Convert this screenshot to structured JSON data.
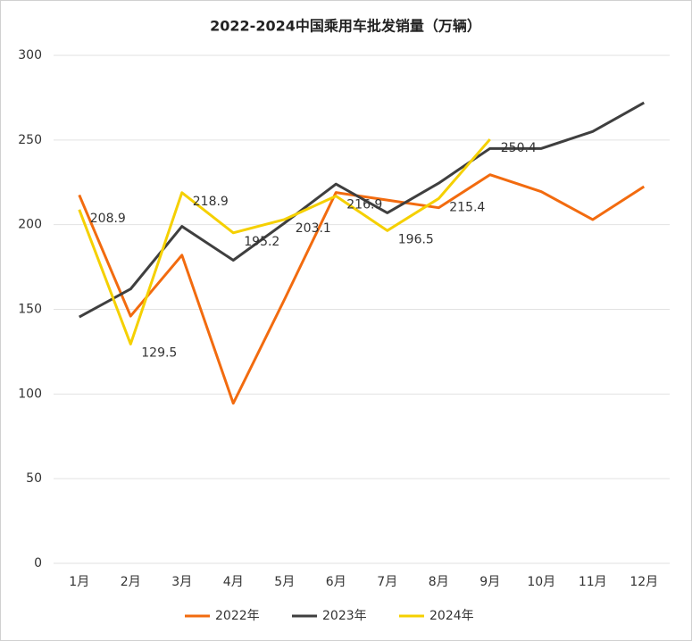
{
  "chart_data": {
    "type": "line",
    "title": "2022-2024中国乘用车批发销量（万辆）",
    "categories": [
      "1月",
      "2月",
      "3月",
      "4月",
      "5月",
      "6月",
      "7月",
      "8月",
      "9月",
      "10月",
      "11月",
      "12月"
    ],
    "series": [
      {
        "name": "2022年",
        "color": "#f26b0f",
        "values": [
          217.5,
          146,
          182,
          94.5,
          156,
          219,
          214.5,
          210,
          229.5,
          219.5,
          203,
          222.5
        ],
        "show_labels": false
      },
      {
        "name": "2023年",
        "color": "#3f3f3f",
        "values": [
          145.5,
          162,
          199,
          179,
          201,
          224,
          207,
          224.5,
          245,
          245,
          255,
          272
        ],
        "show_labels": false
      },
      {
        "name": "2024年",
        "color": "#f5d000",
        "values": [
          208.9,
          129.5,
          218.9,
          195.2,
          203.1,
          216.9,
          196.5,
          215.4,
          250.4,
          null,
          null,
          null
        ],
        "show_labels": true
      }
    ],
    "ylim": [
      0,
      300
    ],
    "yticks": [
      0,
      50,
      100,
      150,
      200,
      250,
      300
    ],
    "grid": true,
    "legend": "bottom"
  }
}
